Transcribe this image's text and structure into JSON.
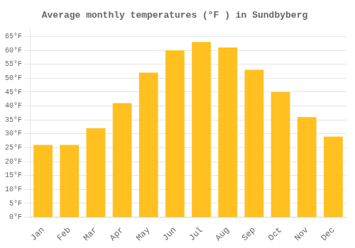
{
  "chart_data": {
    "type": "bar",
    "title": "Average monthly temperatures (°F ) in Sundbyberg",
    "categories": [
      "Jan",
      "Feb",
      "Mar",
      "Apr",
      "May",
      "Jun",
      "Jul",
      "Aug",
      "Sep",
      "Oct",
      "Nov",
      "Dec"
    ],
    "values": [
      26,
      26,
      32,
      41,
      52,
      60,
      63,
      61,
      53,
      45,
      36,
      29
    ],
    "color": "#FFC020",
    "ylim": [
      0,
      68
    ],
    "yticks": [
      {
        "value": 0,
        "label": "0°F"
      },
      {
        "value": 5,
        "label": "5°F"
      },
      {
        "value": 10,
        "label": "10°F"
      },
      {
        "value": 15,
        "label": "15°F"
      },
      {
        "value": 20,
        "label": "20°F"
      },
      {
        "value": 25,
        "label": "25°F"
      },
      {
        "value": 30,
        "label": "30°F"
      },
      {
        "value": 35,
        "label": "35°F"
      },
      {
        "value": 40,
        "label": "40°F"
      },
      {
        "value": 45,
        "label": "45°F"
      },
      {
        "value": 50,
        "label": "50°F"
      },
      {
        "value": 55,
        "label": "55°F"
      },
      {
        "value": 60,
        "label": "60°F"
      },
      {
        "value": 65,
        "label": "65°F"
      }
    ],
    "grid": true
  }
}
